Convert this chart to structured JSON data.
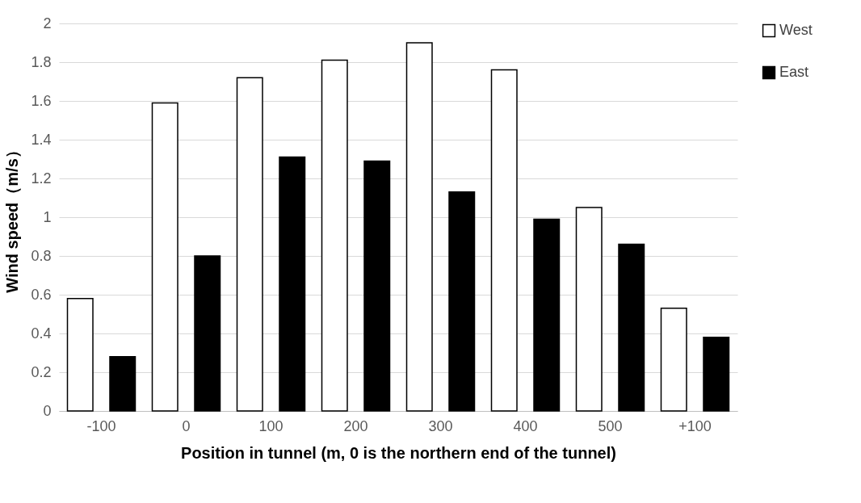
{
  "chart_data": {
    "type": "bar",
    "xlabel": "Position in tunnel (m, 0 is the northern end of the tunnel)",
    "ylabel": "Wind speed（m/s）",
    "categories": [
      "-100",
      "0",
      "100",
      "200",
      "300",
      "400",
      "500",
      "+100"
    ],
    "series": [
      {
        "name": "West",
        "color": "#ffffff",
        "values": [
          0.58,
          1.59,
          1.72,
          1.81,
          1.9,
          1.76,
          1.05,
          0.53
        ]
      },
      {
        "name": "East",
        "color": "#000000",
        "values": [
          0.28,
          0.8,
          1.31,
          1.29,
          1.13,
          0.99,
          0.86,
          0.38
        ]
      }
    ],
    "ylim": [
      0,
      2
    ],
    "yticks": [
      0,
      0.2,
      0.4,
      0.6,
      0.8,
      1,
      1.2,
      1.4,
      1.6,
      1.8,
      2
    ],
    "grid": "y",
    "legend": "right"
  }
}
